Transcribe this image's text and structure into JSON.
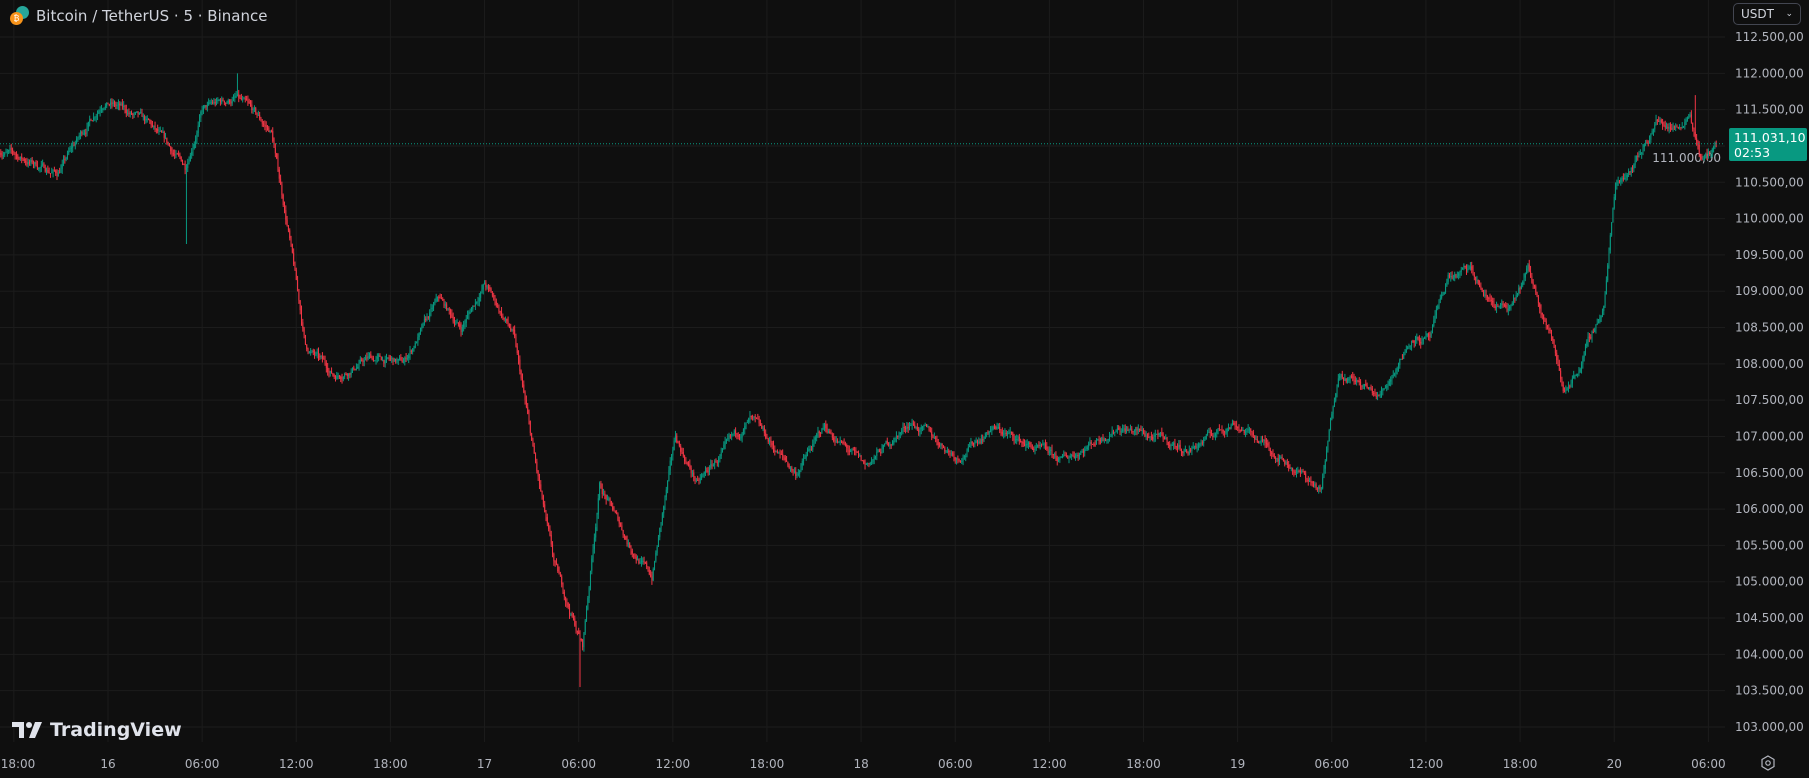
{
  "header": {
    "symbol_title": "Bitcoin / TetherUS · 5 · Binance",
    "currency_select": "USDT",
    "icons": {
      "symbol": "btc-usdt-coin-icon",
      "dropdown": "chevron-down-icon",
      "settings": "gear-icon"
    }
  },
  "watermark": {
    "text": "TradingView"
  },
  "last_price": {
    "value": "111.031,10",
    "countdown": "02:53",
    "color": "#089981"
  },
  "colors": {
    "up": "#089981",
    "down": "#f23645",
    "background": "#0f0f0f",
    "grid": "#1c1c1c"
  },
  "chart_data": {
    "type": "candlestick",
    "interval_minutes": 5,
    "grid": true,
    "price_axis": {
      "position": "right",
      "range": [
        102800,
        112650
      ],
      "ticks": [
        "112.500,00",
        "112.000,00",
        "111.500,00",
        "111.000,00",
        "110.500,00",
        "110.000,00",
        "109.500,00",
        "109.000,00",
        "108.500,00",
        "108.000,00",
        "107.500,00",
        "107.000,00",
        "106.500,00",
        "106.000,00",
        "105.500,00",
        "105.000,00",
        "104.500,00",
        "104.000,00",
        "103.500,00",
        "103.000,00"
      ],
      "tick_values": [
        112500,
        112000,
        111500,
        111000,
        110500,
        110000,
        109500,
        109000,
        108500,
        108000,
        107500,
        107000,
        106500,
        106000,
        105500,
        105000,
        104500,
        104000,
        103500,
        103000
      ]
    },
    "time_axis": {
      "ticks": [
        "18:00",
        "16",
        "06:00",
        "12:00",
        "18:00",
        "17",
        "06:00",
        "12:00",
        "18:00",
        "18",
        "06:00",
        "12:00",
        "18:00",
        "19",
        "06:00",
        "12:00",
        "18:00",
        "20",
        "06:00"
      ],
      "tick_times": [
        "15 18:00",
        "16 00:00",
        "16 06:00",
        "16 12:00",
        "16 18:00",
        "17 00:00",
        "17 06:00",
        "17 12:00",
        "17 18:00",
        "18 00:00",
        "18 06:00",
        "18 12:00",
        "18 18:00",
        "19 00:00",
        "19 06:00",
        "19 12:00",
        "19 18:00",
        "20 00:00",
        "20 06:00"
      ]
    },
    "last_price": 111031.1,
    "price_path": [
      [
        "15 17:05",
        110950
      ],
      [
        "15 20:45",
        110625
      ],
      [
        "15 23:45",
        111660
      ],
      [
        "16 02:40",
        111260
      ],
      [
        "16 04:55",
        110700
      ],
      [
        "16 06:00",
        111500
      ],
      [
        "16 08:10",
        111660
      ],
      [
        "16 10:25",
        111180
      ],
      [
        "16 11:30",
        109830
      ],
      [
        "16 12:35",
        108240
      ],
      [
        "16 14:25",
        107840
      ],
      [
        "16 16:40",
        108080
      ],
      [
        "16 18:50",
        108000
      ],
      [
        "16 21:05",
        108880
      ],
      [
        "16 22:30",
        108480
      ],
      [
        "17 00:00",
        109110
      ],
      [
        "17 01:50",
        108400
      ],
      [
        "17 03:20",
        106490
      ],
      [
        "17 04:25",
        105220
      ],
      [
        "17 06:15",
        104110
      ],
      [
        "17 07:20",
        106340
      ],
      [
        "17 09:10",
        105540
      ],
      [
        "17 10:40",
        105060
      ],
      [
        "17 12:10",
        106970
      ],
      [
        "17 13:35",
        106340
      ],
      [
        "17 16:55",
        107210
      ],
      [
        "17 19:50",
        106490
      ],
      [
        "17 21:40",
        107130
      ],
      [
        "18 00:15",
        106570
      ],
      [
        "18 03:10",
        107210
      ],
      [
        "18 06:10",
        106730
      ],
      [
        "18 08:20",
        107130
      ],
      [
        "18 12:45",
        106650
      ],
      [
        "18 16:25",
        107160
      ],
      [
        "18 20:50",
        106810
      ],
      [
        "18 23:45",
        107210
      ],
      [
        "19 02:45",
        106730
      ],
      [
        "19 05:20",
        106250
      ],
      [
        "19 06:25",
        107920
      ],
      [
        "19 09:00",
        107530
      ],
      [
        "19 11:10",
        108400
      ],
      [
        "19 12:15",
        108320
      ],
      [
        "19 13:25",
        109190
      ],
      [
        "19 14:50",
        109270
      ],
      [
        "19 15:55",
        108880
      ],
      [
        "19 17:25",
        108720
      ],
      [
        "19 18:30",
        109270
      ],
      [
        "19 20:00",
        108400
      ],
      [
        "19 20:45",
        107600
      ],
      [
        "19 21:50",
        108000
      ],
      [
        "19 23:20",
        108800
      ],
      [
        "20 00:05",
        110470
      ],
      [
        "20 01:30",
        110860
      ],
      [
        "20 02:40",
        111340
      ],
      [
        "20 04:05",
        111260
      ],
      [
        "20 04:50",
        111500
      ],
      [
        "20 05:35",
        110780
      ],
      [
        "20 06:30",
        111031.1
      ]
    ],
    "notable_wicks": [
      [
        "16 05:00",
        109650
      ],
      [
        "16 08:15",
        112000
      ],
      [
        "17 06:05",
        103550
      ],
      [
        "20 05:10",
        111700
      ]
    ]
  }
}
